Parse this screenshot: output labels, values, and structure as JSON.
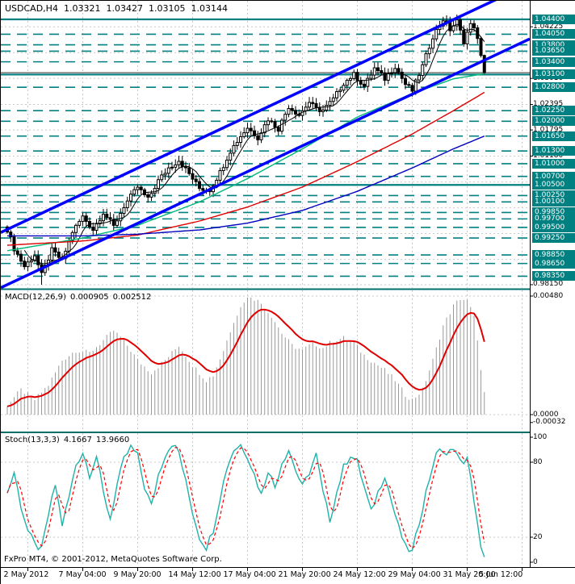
{
  "window": {
    "symbol": "USDCAD,H4",
    "open": "1.03321",
    "high": "1.03427",
    "low": "1.03105",
    "close": "1.03144"
  },
  "footer": {
    "copyright": "FxPro MT4, © 2001-2012, MetaQuotes Software Corp."
  },
  "colors": {
    "background": "#FFFFFF",
    "border": "#000000",
    "grid": "#C8C8C8",
    "level_teal": "#008080",
    "separator": "#007070",
    "badge_text": "#FFFFFF",
    "channel_blue": "#0000FF",
    "candle_outline": "#000000",
    "candle_up_fill": "#FFFFFF",
    "candle_down_fill": "#000000",
    "ma_fast": "#000000",
    "ma_green": "#00B878",
    "ma_red": "#E00000",
    "ma_blue": "#0000C0",
    "macd_histogram": "#999999",
    "macd_signal": "#E00000",
    "stoch_main": "#20B2AA",
    "stoch_signal": "#FF0000",
    "bid_line": "#303030"
  },
  "chart_data": [
    {
      "type": "candlestick",
      "symbol": "USDCAD",
      "timeframe": "H4",
      "bar_count": 140,
      "ohlc_display": {
        "open": 1.03321,
        "high": 1.03427,
        "low": 1.03105,
        "close": 1.03144
      },
      "y_axis": {
        "range": [
          0.9807,
          1.0444
        ],
        "bid_price": 1.03144,
        "levels": [
          {
            "price": 1.044,
            "label": "1.04400",
            "style": "solid"
          },
          {
            "price": 1.0405,
            "label": "1.04050",
            "style": "dashed"
          },
          {
            "price": 1.038,
            "label": "1.03800",
            "style": "dashed"
          },
          {
            "price": 1.0365,
            "label": "1.03650",
            "style": "dashed"
          },
          {
            "price": 1.034,
            "label": "1.03400",
            "style": "dashed"
          },
          {
            "price": 1.031,
            "label": "1.03100",
            "style": "solid"
          },
          {
            "price": 1.028,
            "label": "1.02800",
            "style": "dashed"
          },
          {
            "price": 1.0225,
            "label": "1.02250",
            "style": "dashed"
          },
          {
            "price": 1.02,
            "label": "1.02000",
            "style": "dashed"
          },
          {
            "price": 1.0165,
            "label": "1.01650",
            "style": "dashed"
          },
          {
            "price": 1.013,
            "label": "1.01300",
            "style": "dashed"
          },
          {
            "price": 1.01,
            "label": "1.01000",
            "style": "dashed"
          },
          {
            "price": 1.007,
            "label": "1.00700",
            "style": "dashed"
          },
          {
            "price": 1.005,
            "label": "1.00500",
            "style": "solid"
          },
          {
            "price": 1.0025,
            "label": "1.00250",
            "style": "dashed"
          },
          {
            "price": 1.001,
            "label": "1.00100",
            "style": "dashed"
          },
          {
            "price": 0.9985,
            "label": "0.99850",
            "style": "dashed"
          },
          {
            "price": 0.997,
            "label": "0.99700",
            "style": "dashed"
          },
          {
            "price": 0.995,
            "label": "0.99500",
            "style": "dashed"
          },
          {
            "price": 0.9925,
            "label": "0.99250",
            "style": "dashed"
          },
          {
            "price": 0.9885,
            "label": "0.98850",
            "style": "dashed"
          },
          {
            "price": 0.9865,
            "label": "0.98650",
            "style": "dashed"
          },
          {
            "price": 0.9835,
            "label": "0.98350",
            "style": "dashed"
          }
        ],
        "grid_levels": [
          {
            "price": 1.04225,
            "label": "1.04225"
          },
          {
            "price": 1.03615,
            "label": ""
          },
          {
            "price": 1.0301,
            "label": "1.03010"
          },
          {
            "price": 1.02395,
            "label": "1.02395"
          },
          {
            "price": 1.01795,
            "label": "1.01795"
          },
          {
            "price": 1.0118,
            "label": "1.01180"
          },
          {
            "price": 1.0057,
            "label": ""
          },
          {
            "price": 0.9996,
            "label": ""
          },
          {
            "price": 0.99355,
            "label": ""
          },
          {
            "price": 0.98745,
            "label": ""
          },
          {
            "price": 0.9815,
            "label": "0.98150"
          }
        ]
      },
      "x_axis": {
        "labels": [
          "2 May 2012",
          "7 May 04:00",
          "9 May 20:00",
          "14 May 12:00",
          "17 May 04:00",
          "21 May 20:00",
          "24 May 12:00",
          "29 May 04:00",
          "31 May 20:00",
          "5 Jun 12:00"
        ],
        "tick_bars": [
          6,
          22,
          38,
          54,
          70,
          86,
          102,
          118,
          134,
          150
        ]
      },
      "close_anchors": [
        [
          0,
          0.9945
        ],
        [
          2,
          0.99
        ],
        [
          5,
          0.9858
        ],
        [
          8,
          0.9885
        ],
        [
          10,
          0.9838
        ],
        [
          13,
          0.9896
        ],
        [
          16,
          0.9872
        ],
        [
          19,
          0.994
        ],
        [
          22,
          0.9975
        ],
        [
          25,
          0.9945
        ],
        [
          28,
          0.9985
        ],
        [
          31,
          0.9952
        ],
        [
          34,
          1.0
        ],
        [
          38,
          1.0045
        ],
        [
          41,
          1.0016
        ],
        [
          44,
          1.006
        ],
        [
          47,
          1.009
        ],
        [
          50,
          1.0108
        ],
        [
          53,
          1.0076
        ],
        [
          56,
          1.0042
        ],
        [
          59,
          1.0038
        ],
        [
          62,
          1.008
        ],
        [
          65,
          1.013
        ],
        [
          68,
          1.0165
        ],
        [
          70,
          1.0185
        ],
        [
          73,
          1.0162
        ],
        [
          76,
          1.0205
        ],
        [
          79,
          1.0182
        ],
        [
          82,
          1.0235
        ],
        [
          85,
          1.0215
        ],
        [
          88,
          1.0245
        ],
        [
          90,
          1.0228
        ],
        [
          92,
          1.0226
        ],
        [
          95,
          1.0252
        ],
        [
          98,
          1.029
        ],
        [
          101,
          1.031
        ],
        [
          104,
          1.0282
        ],
        [
          107,
          1.0325
        ],
        [
          110,
          1.03
        ],
        [
          113,
          1.033
        ],
        [
          116,
          1.0287
        ],
        [
          118,
          1.0272
        ],
        [
          121,
          1.033
        ],
        [
          124,
          1.04
        ],
        [
          127,
          1.044
        ],
        [
          129,
          1.0416
        ],
        [
          131,
          1.0435
        ],
        [
          133,
          1.0388
        ],
        [
          135,
          1.043
        ],
        [
          136,
          1.042
        ],
        [
          137,
          1.0395
        ],
        [
          138,
          1.0355
        ],
        [
          139,
          1.03144
        ]
      ],
      "extremes": {
        "low_bar": 10,
        "low_price": 0.9815,
        "high_bar": 127,
        "high_price": 1.0446,
        "last_low": 1.03105
      },
      "channel": {
        "lower": [
          [
            0,
            0.9808
          ],
          [
            655,
            1.0394
          ]
        ],
        "upper": [
          [
            0,
            0.9938
          ],
          [
            655,
            1.0524
          ]
        ]
      },
      "moving_averages": [
        {
          "name": "ma-fast-black",
          "mode": "sma6_of_closes",
          "color": "#000000",
          "width": 1
        },
        {
          "name": "ma-green",
          "color": "#00B878",
          "width": 1.4,
          "anchors": [
            [
              0,
              0.9895
            ],
            [
              22,
              0.9925
            ],
            [
              38,
              0.9955
            ],
            [
              56,
              1.001
            ],
            [
              70,
              1.0065
            ],
            [
              86,
              1.0135
            ],
            [
              102,
              1.021
            ],
            [
              118,
              1.0265
            ],
            [
              130,
              1.03
            ],
            [
              139,
              1.0312
            ]
          ]
        },
        {
          "name": "ma-red",
          "color": "#E00000",
          "width": 1.4,
          "anchors": [
            [
              0,
              0.9908
            ],
            [
              22,
              0.9918
            ],
            [
              38,
              0.9932
            ],
            [
              56,
              0.9965
            ],
            [
              70,
              0.9998
            ],
            [
              86,
              1.0045
            ],
            [
              102,
              1.0105
            ],
            [
              118,
              1.017
            ],
            [
              130,
              1.0225
            ],
            [
              139,
              1.0268
            ]
          ]
        },
        {
          "name": "ma-blue",
          "color": "#0000C0",
          "width": 1.4,
          "anchors": [
            [
              0,
              0.993
            ],
            [
              22,
              0.993
            ],
            [
              38,
              0.9934
            ],
            [
              56,
              0.9944
            ],
            [
              70,
              0.996
            ],
            [
              86,
              0.999
            ],
            [
              102,
              1.0035
            ],
            [
              118,
              1.009
            ],
            [
              130,
              1.0135
            ],
            [
              139,
              1.0165
            ]
          ]
        }
      ]
    },
    {
      "type": "macd_histogram",
      "label": "MACD(12,26,9)",
      "value": "0.000905",
      "signal_value": "0.002512",
      "scale_labels": [
        {
          "value": 0.0048,
          "label": "0.00480"
        },
        {
          "value": 0.0,
          "label": "0.0000"
        },
        {
          "value": -0.00032,
          "label": "-0.00032"
        }
      ],
      "ylim": [
        -0.00032,
        0.0048
      ],
      "anchors": [
        [
          0,
          0.0004
        ],
        [
          4,
          0.001
        ],
        [
          8,
          0.0006
        ],
        [
          12,
          0.0012
        ],
        [
          16,
          0.0022
        ],
        [
          20,
          0.0026
        ],
        [
          24,
          0.0025
        ],
        [
          28,
          0.003
        ],
        [
          31,
          0.0034
        ],
        [
          34,
          0.003
        ],
        [
          38,
          0.0022
        ],
        [
          42,
          0.0017
        ],
        [
          46,
          0.0022
        ],
        [
          50,
          0.0028
        ],
        [
          54,
          0.002
        ],
        [
          58,
          0.0014
        ],
        [
          60,
          0.0016
        ],
        [
          63,
          0.0026
        ],
        [
          66,
          0.0038
        ],
        [
          69,
          0.0046
        ],
        [
          71,
          0.0048
        ],
        [
          74,
          0.0045
        ],
        [
          77,
          0.004
        ],
        [
          80,
          0.0033
        ],
        [
          83,
          0.0028
        ],
        [
          86,
          0.0026
        ],
        [
          89,
          0.0029
        ],
        [
          92,
          0.0027
        ],
        [
          95,
          0.003
        ],
        [
          98,
          0.0031
        ],
        [
          101,
          0.0029
        ],
        [
          104,
          0.0024
        ],
        [
          107,
          0.0021
        ],
        [
          110,
          0.0018
        ],
        [
          113,
          0.0014
        ],
        [
          116,
          0.0008
        ],
        [
          118,
          0.0006
        ],
        [
          121,
          0.001
        ],
        [
          124,
          0.0022
        ],
        [
          127,
          0.0036
        ],
        [
          130,
          0.0044
        ],
        [
          132,
          0.0047
        ],
        [
          134,
          0.0046
        ],
        [
          136,
          0.004
        ],
        [
          137,
          0.003
        ],
        [
          138,
          0.0018
        ],
        [
          139,
          0.00091
        ]
      ]
    },
    {
      "type": "stochastic",
      "label": "Stoch(13,3,3)",
      "value": "4.1667",
      "signal_value": "13.9660",
      "scale_labels": [
        {
          "value": 100,
          "label": "100"
        },
        {
          "value": 80,
          "label": "80",
          "dashed_line": true
        },
        {
          "value": 20,
          "label": "20",
          "dashed_line": true
        },
        {
          "value": 0,
          "label": "0"
        }
      ],
      "ylim": [
        0,
        100
      ],
      "k_anchors": [
        [
          0,
          55
        ],
        [
          2,
          72
        ],
        [
          4,
          45
        ],
        [
          6,
          25
        ],
        [
          8,
          14
        ],
        [
          10,
          10
        ],
        [
          12,
          38
        ],
        [
          14,
          62
        ],
        [
          16,
          30
        ],
        [
          18,
          52
        ],
        [
          20,
          78
        ],
        [
          22,
          88
        ],
        [
          24,
          70
        ],
        [
          26,
          85
        ],
        [
          28,
          55
        ],
        [
          30,
          35
        ],
        [
          32,
          62
        ],
        [
          34,
          82
        ],
        [
          36,
          92
        ],
        [
          38,
          85
        ],
        [
          40,
          60
        ],
        [
          42,
          45
        ],
        [
          44,
          70
        ],
        [
          46,
          86
        ],
        [
          48,
          95
        ],
        [
          50,
          88
        ],
        [
          52,
          64
        ],
        [
          54,
          40
        ],
        [
          56,
          20
        ],
        [
          58,
          12
        ],
        [
          60,
          26
        ],
        [
          62,
          52
        ],
        [
          64,
          76
        ],
        [
          66,
          90
        ],
        [
          68,
          94
        ],
        [
          70,
          85
        ],
        [
          72,
          70
        ],
        [
          74,
          54
        ],
        [
          76,
          74
        ],
        [
          78,
          60
        ],
        [
          80,
          80
        ],
        [
          82,
          90
        ],
        [
          84,
          74
        ],
        [
          86,
          60
        ],
        [
          88,
          72
        ],
        [
          90,
          86
        ],
        [
          92,
          55
        ],
        [
          94,
          34
        ],
        [
          96,
          56
        ],
        [
          98,
          76
        ],
        [
          100,
          86
        ],
        [
          102,
          80
        ],
        [
          104,
          60
        ],
        [
          106,
          40
        ],
        [
          108,
          56
        ],
        [
          110,
          70
        ],
        [
          112,
          48
        ],
        [
          114,
          28
        ],
        [
          116,
          12
        ],
        [
          118,
          8
        ],
        [
          120,
          32
        ],
        [
          122,
          56
        ],
        [
          124,
          78
        ],
        [
          126,
          92
        ],
        [
          128,
          84
        ],
        [
          130,
          93
        ],
        [
          132,
          80
        ],
        [
          134,
          82
        ],
        [
          136,
          50
        ],
        [
          138,
          12
        ],
        [
          139,
          4.2
        ]
      ]
    }
  ]
}
